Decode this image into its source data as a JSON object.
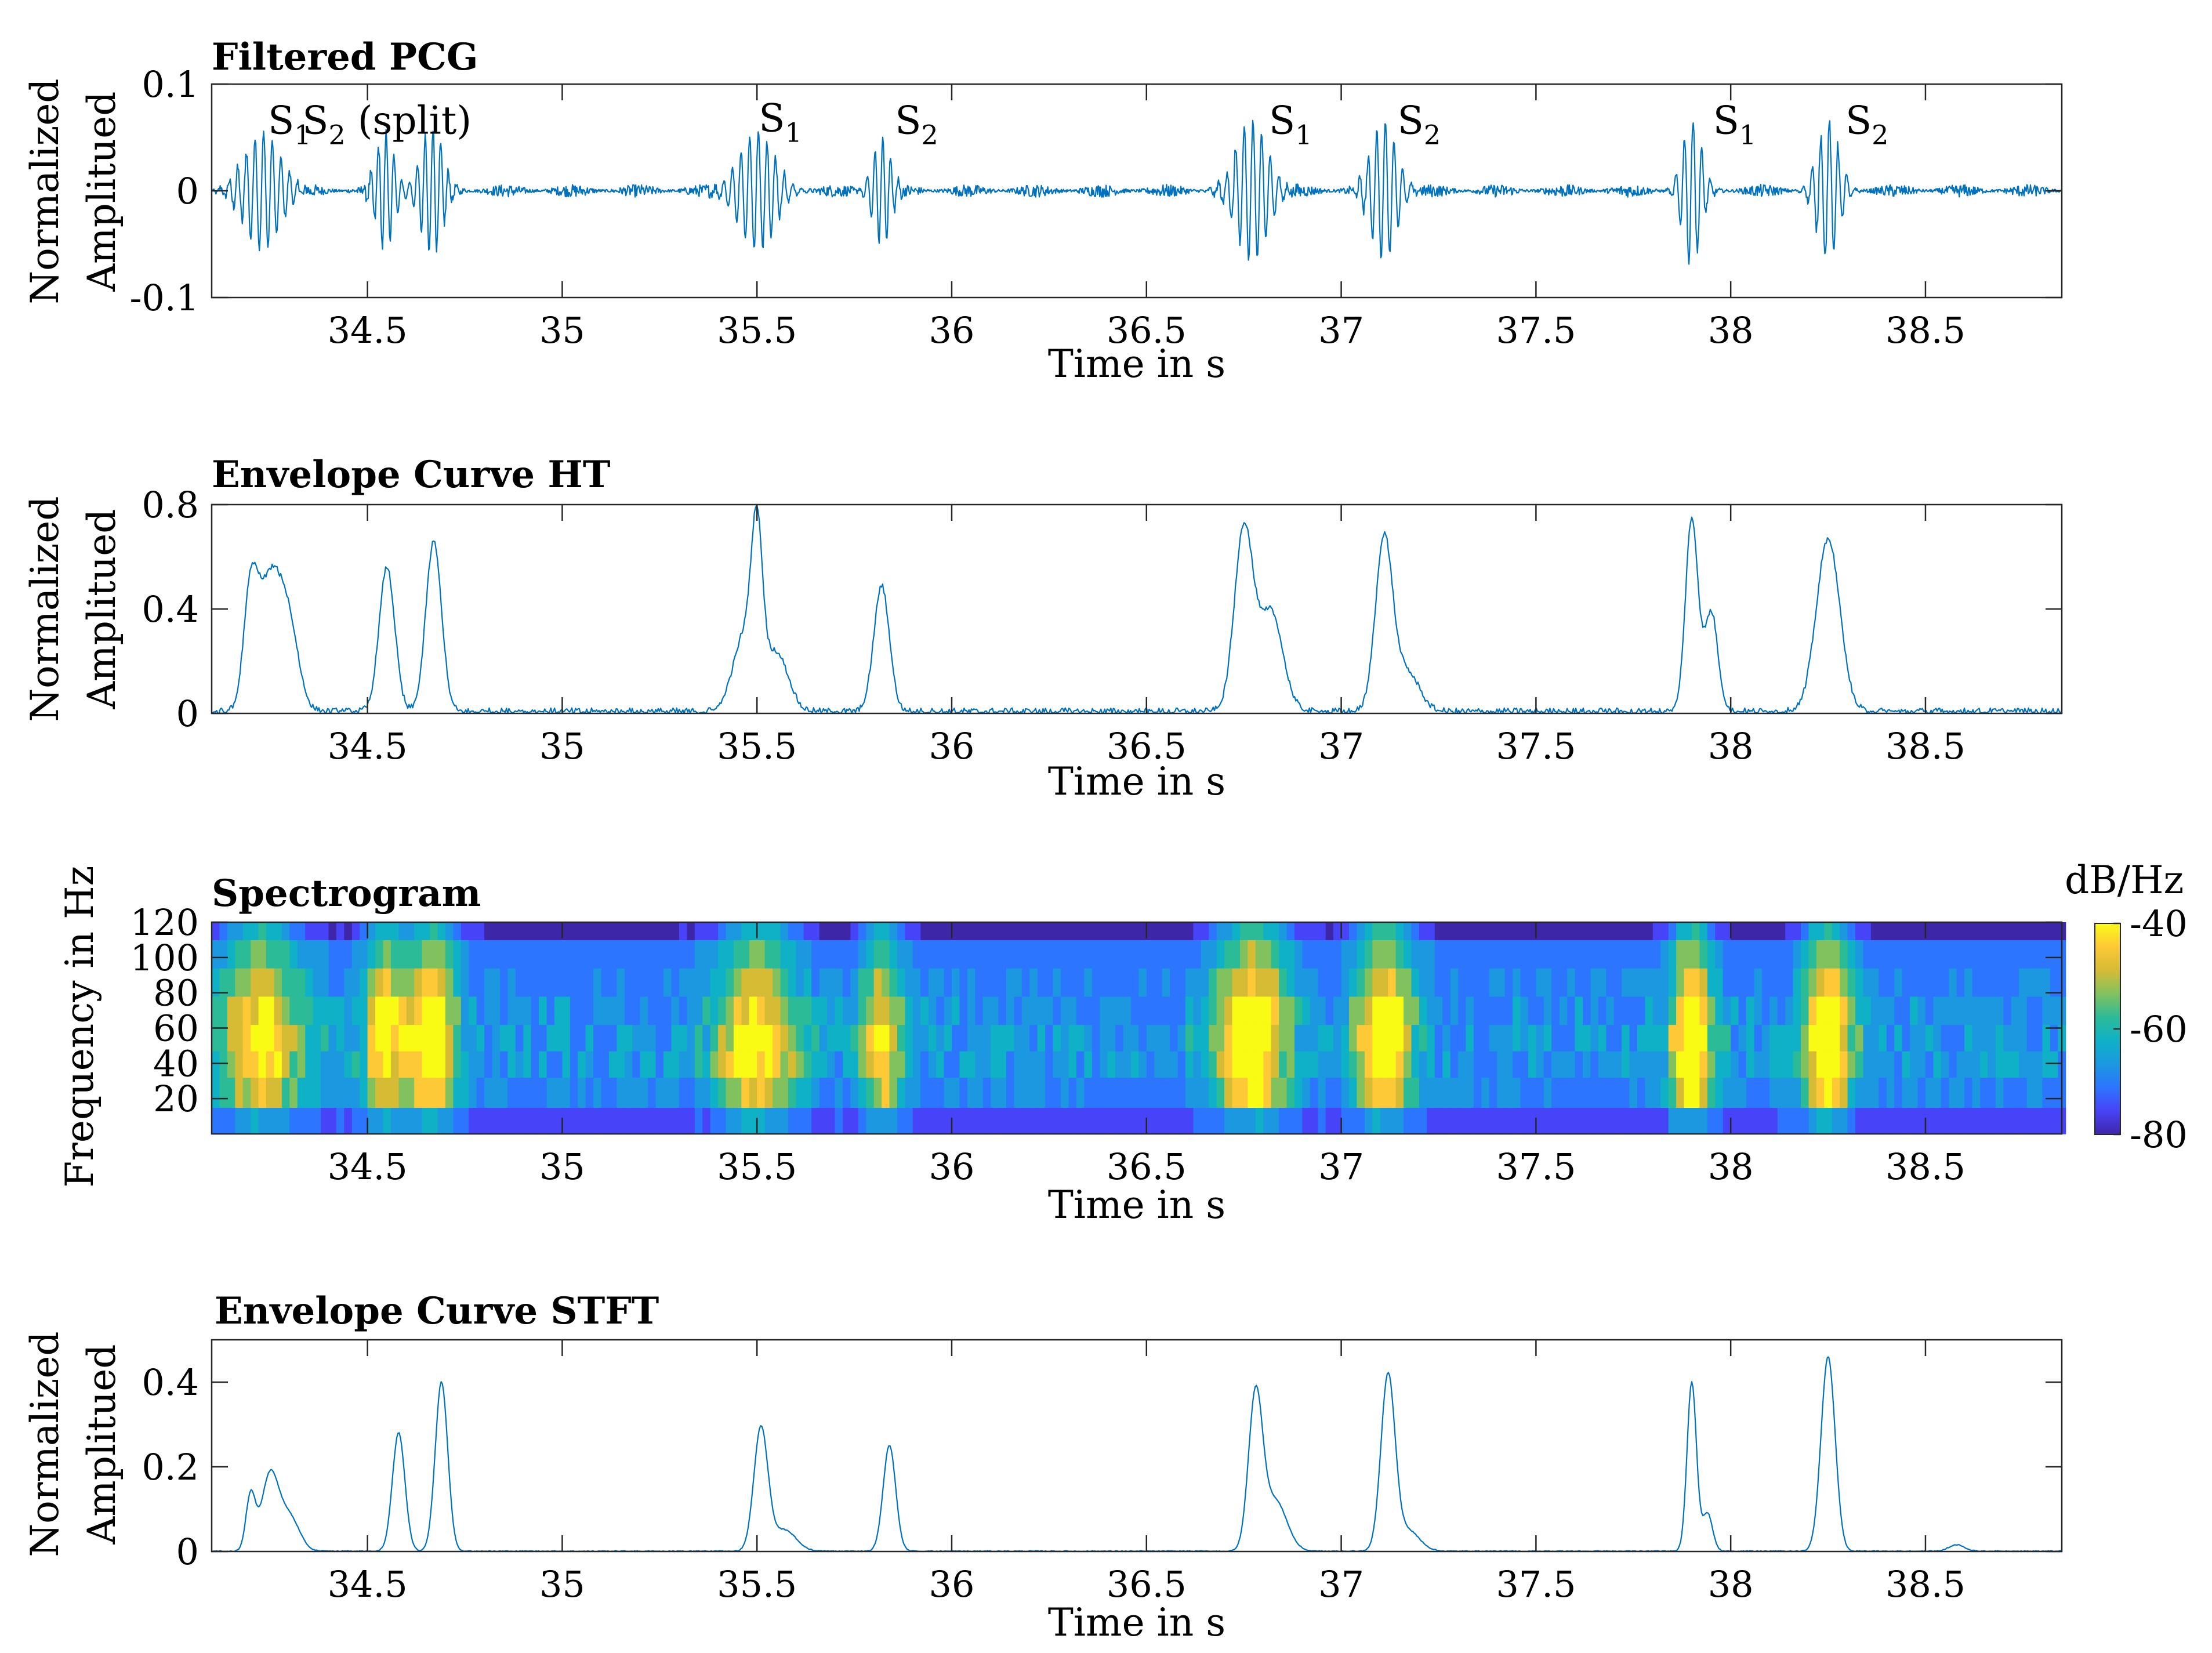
{
  "chart_data": [
    {
      "type": "line",
      "panel": "pcg",
      "title": "Filtered PCG",
      "xlabel": "Time in s",
      "ylabel": [
        "Normalized",
        "Amplitued"
      ],
      "xlim": [
        34.1,
        38.85
      ],
      "ylim": [
        -0.1,
        0.1
      ],
      "xticks": [
        34.5,
        35,
        35.5,
        36,
        36.5,
        37,
        37.5,
        38,
        38.5
      ],
      "xtick_labels": [
        "34.5",
        "35",
        "35.5",
        "36",
        "36.5",
        "37",
        "37.5",
        "38",
        "38.5"
      ],
      "yticks": [
        -0.1,
        0,
        0.1
      ],
      "ytick_labels": [
        "-0.1",
        "0",
        "0.1"
      ],
      "series_color": "#0072BD",
      "events": [
        {
          "t": 34.23,
          "amp": 0.055,
          "dur": 0.1,
          "freq": 45
        },
        {
          "t": 34.545,
          "amp": 0.055,
          "dur": 0.05,
          "freq": 50
        },
        {
          "t": 34.665,
          "amp": 0.06,
          "dur": 0.06,
          "freq": 50
        },
        {
          "t": 35.5,
          "amp": 0.055,
          "dur": 0.1,
          "freq": 45
        },
        {
          "t": 35.82,
          "amp": 0.05,
          "dur": 0.05,
          "freq": 50
        },
        {
          "t": 36.77,
          "amp": 0.065,
          "dur": 0.09,
          "freq": 45
        },
        {
          "t": 37.11,
          "amp": 0.065,
          "dur": 0.07,
          "freq": 45
        },
        {
          "t": 37.9,
          "amp": 0.07,
          "dur": 0.05,
          "freq": 45
        },
        {
          "t": 38.25,
          "amp": 0.065,
          "dur": 0.06,
          "freq": 45
        }
      ],
      "noise_amp": 0.006,
      "annotations": [
        {
          "t": 34.3,
          "y": 0.058,
          "label": "S",
          "sub": "1"
        },
        {
          "t": 34.55,
          "y": 0.058,
          "label": "S",
          "sub": "2",
          "suffix": " (split)"
        },
        {
          "t": 35.56,
          "y": 0.06,
          "label": "S",
          "sub": "1"
        },
        {
          "t": 35.91,
          "y": 0.058,
          "label": "S",
          "sub": "2"
        },
        {
          "t": 36.87,
          "y": 0.058,
          "label": "S",
          "sub": "1"
        },
        {
          "t": 37.2,
          "y": 0.058,
          "label": "S",
          "sub": "2"
        },
        {
          "t": 38.01,
          "y": 0.058,
          "label": "S",
          "sub": "1"
        },
        {
          "t": 38.35,
          "y": 0.058,
          "label": "S",
          "sub": "2"
        }
      ]
    },
    {
      "type": "line",
      "panel": "ht",
      "title": "Envelope Curve HT",
      "xlabel": "Time in s",
      "ylabel": [
        "Normalized",
        "Amplitued"
      ],
      "xlim": [
        34.1,
        38.85
      ],
      "ylim": [
        0,
        0.8
      ],
      "xticks": [
        34.5,
        35,
        35.5,
        36,
        36.5,
        37,
        37.5,
        38,
        38.5
      ],
      "xtick_labels": [
        "34.5",
        "35",
        "35.5",
        "36",
        "36.5",
        "37",
        "37.5",
        "38",
        "38.5"
      ],
      "yticks": [
        0,
        0.4,
        0.8
      ],
      "ytick_labels": [
        "0",
        "0.4",
        "0.8"
      ],
      "series_color": "#0072BD",
      "peaks": [
        {
          "t": 34.2,
          "h": 0.42,
          "w": 0.018
        },
        {
          "t": 34.25,
          "h": 0.5,
          "w": 0.03
        },
        {
          "t": 34.3,
          "h": 0.28,
          "w": 0.025
        },
        {
          "t": 34.55,
          "h": 0.55,
          "w": 0.02
        },
        {
          "t": 34.67,
          "h": 0.65,
          "w": 0.02
        },
        {
          "t": 35.47,
          "h": 0.3,
          "w": 0.03
        },
        {
          "t": 35.5,
          "h": 0.55,
          "w": 0.014
        },
        {
          "t": 35.55,
          "h": 0.22,
          "w": 0.03
        },
        {
          "t": 35.82,
          "h": 0.48,
          "w": 0.02
        },
        {
          "t": 36.75,
          "h": 0.7,
          "w": 0.024
        },
        {
          "t": 36.82,
          "h": 0.38,
          "w": 0.03
        },
        {
          "t": 37.11,
          "h": 0.66,
          "w": 0.022
        },
        {
          "t": 37.17,
          "h": 0.15,
          "w": 0.03
        },
        {
          "t": 37.9,
          "h": 0.74,
          "w": 0.016
        },
        {
          "t": 37.95,
          "h": 0.38,
          "w": 0.017
        },
        {
          "t": 38.25,
          "h": 0.66,
          "w": 0.03
        }
      ],
      "noise_amp": 0.03
    },
    {
      "type": "heatmap",
      "panel": "spectrogram",
      "title": "Spectrogram",
      "xlabel": "Time in s",
      "ylabel": [
        "Frequency in Hz"
      ],
      "xlim": [
        34.1,
        38.85
      ],
      "ylim": [
        0,
        120
      ],
      "xticks": [
        34.5,
        35,
        35.5,
        36,
        36.5,
        37,
        37.5,
        38,
        38.5
      ],
      "xtick_labels": [
        "34.5",
        "35",
        "35.5",
        "36",
        "36.5",
        "37",
        "37.5",
        "38",
        "38.5"
      ],
      "yticks": [
        20,
        40,
        60,
        80,
        100,
        120
      ],
      "ytick_labels": [
        "20",
        "40",
        "60",
        "80",
        "100",
        "120"
      ],
      "freq_bands": [
        0,
        15,
        32,
        47,
        62,
        78,
        94,
        110,
        120
      ],
      "time_step": 0.02,
      "colorbar": {
        "label": "dB/Hz",
        "range": [
          -80,
          -40
        ],
        "ticks": [
          -40,
          -60,
          -80
        ],
        "tick_labels": [
          "-40",
          "-60",
          "-80"
        ]
      },
      "colormap": [
        "#3e26a8",
        "#4743f8",
        "#2c75fe",
        "#1b98e0",
        "#0fb1c7",
        "#2cbb97",
        "#82c25e",
        "#d6bb35",
        "#fec936",
        "#f9fb15"
      ]
    },
    {
      "type": "line",
      "panel": "stft",
      "title": "Envelope Curve STFT",
      "xlabel": "Time in s",
      "ylabel": [
        "Normalized",
        "Amplitued"
      ],
      "xlim": [
        34.1,
        38.85
      ],
      "ylim": [
        0,
        0.5
      ],
      "xticks": [
        34.5,
        35,
        35.5,
        36,
        36.5,
        37,
        37.5,
        38,
        38.5
      ],
      "xtick_labels": [
        "34.5",
        "35",
        "35.5",
        "36",
        "36.5",
        "37",
        "37.5",
        "38",
        "38.5"
      ],
      "yticks": [
        0,
        0.2,
        0.4
      ],
      "ytick_labels": [
        "0",
        "0.2",
        "0.4"
      ],
      "series_color": "#0072BD",
      "peaks": [
        {
          "t": 34.2,
          "h": 0.13,
          "w": 0.012
        },
        {
          "t": 34.25,
          "h": 0.18,
          "w": 0.022
        },
        {
          "t": 34.3,
          "h": 0.08,
          "w": 0.025
        },
        {
          "t": 34.58,
          "h": 0.28,
          "w": 0.016
        },
        {
          "t": 34.69,
          "h": 0.4,
          "w": 0.016
        },
        {
          "t": 35.51,
          "h": 0.29,
          "w": 0.018
        },
        {
          "t": 35.57,
          "h": 0.05,
          "w": 0.03
        },
        {
          "t": 35.84,
          "h": 0.25,
          "w": 0.016
        },
        {
          "t": 36.78,
          "h": 0.36,
          "w": 0.018
        },
        {
          "t": 36.83,
          "h": 0.12,
          "w": 0.03
        },
        {
          "t": 37.12,
          "h": 0.41,
          "w": 0.018
        },
        {
          "t": 37.17,
          "h": 0.05,
          "w": 0.03
        },
        {
          "t": 37.9,
          "h": 0.4,
          "w": 0.012
        },
        {
          "t": 37.94,
          "h": 0.09,
          "w": 0.013
        },
        {
          "t": 38.25,
          "h": 0.46,
          "w": 0.018
        },
        {
          "t": 38.58,
          "h": 0.015,
          "w": 0.02
        }
      ],
      "noise_amp": 0.003
    }
  ]
}
